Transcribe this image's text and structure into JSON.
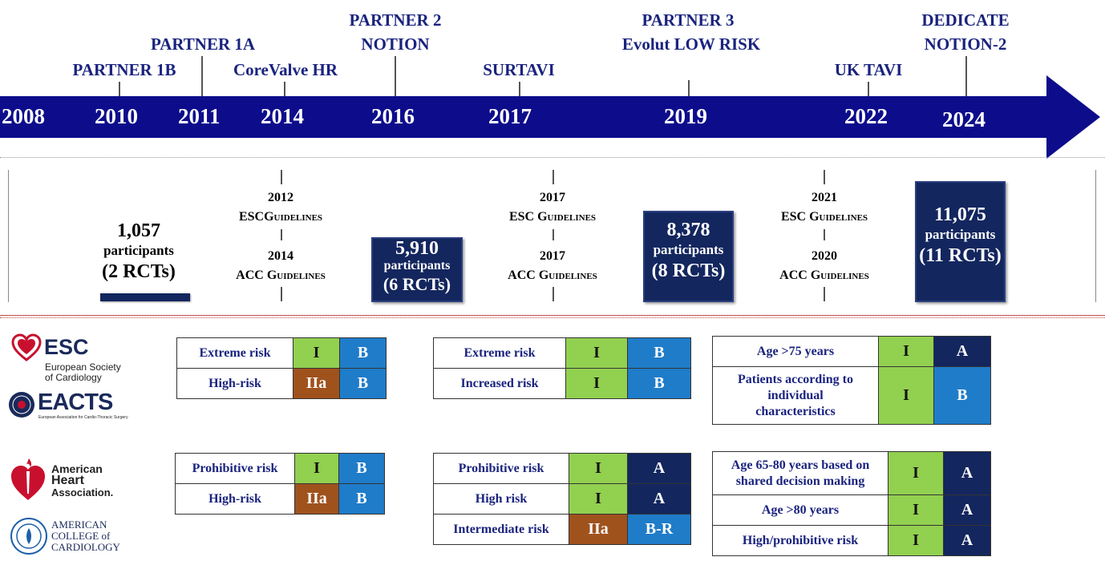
{
  "timeline": {
    "years": [
      "2008",
      "2010",
      "2011",
      "2014",
      "2016",
      "2017",
      "2019",
      "2022",
      "2024"
    ],
    "trials": {
      "partner1b": "PARTNER 1B",
      "partner1a": "PARTNER 1A",
      "corevalve": "CoreValve HR",
      "partner2": "PARTNER 2",
      "notion": "NOTION",
      "surtavi": "SURTAVI",
      "partner3": "PARTNER 3",
      "evolut": "Evolut LOW RISK",
      "uktavi": "UK TAVI",
      "dedicate": "DEDICATE",
      "notion2": "NOTION-2"
    },
    "colors": {
      "arrow": "#0d0d8c",
      "trial_text": "#1a237e"
    }
  },
  "participants": [
    {
      "number": "1,057",
      "label": "participants",
      "rcts": "(2 RCTs)"
    },
    {
      "number": "5,910",
      "label": "participants",
      "rcts": "(6 RCTs)"
    },
    {
      "number": "8,378",
      "label": "participants",
      "rcts": "(8 RCTs)"
    },
    {
      "number": "11,075",
      "label": "participants",
      "rcts": "(11 RCTs)"
    }
  ],
  "guidelines": [
    {
      "esc_year": "2012",
      "esc_label": "ESCGuidelines",
      "acc_year": "2014",
      "acc_label": "ACC Guidelines"
    },
    {
      "esc_year": "2017",
      "esc_label": "ESC Guidelines",
      "acc_year": "2017",
      "acc_label": "ACC Guidelines"
    },
    {
      "esc_year": "2021",
      "esc_label": "ESC Guidelines",
      "acc_year": "2020",
      "acc_label": "ACC Guidelines"
    }
  ],
  "logos": {
    "esc": {
      "mark": "ESC",
      "line1": "European Society",
      "line2": "of Cardiology"
    },
    "eacts": {
      "mark": "EACTS",
      "sub": "European Association for Cardio-Thoracic Surgery"
    },
    "aha": {
      "line1": "American",
      "line2": "Heart",
      "line3": "Association."
    },
    "acc": {
      "line1": "AMERICAN",
      "line2": "COLLEGE of",
      "line3": "CARDIOLOGY"
    }
  },
  "esc_tables": [
    [
      {
        "label": "Extreme risk",
        "class": "I",
        "level": "B"
      },
      {
        "label": "High-risk",
        "class": "IIa",
        "level": "B"
      }
    ],
    [
      {
        "label": "Extreme risk",
        "class": "I",
        "level": "B"
      },
      {
        "label": "Increased risk",
        "class": "I",
        "level": "B"
      }
    ],
    [
      {
        "label": "Age >75 years",
        "class": "I",
        "level": "A"
      },
      {
        "label": "Patients according to individual characteristics",
        "class": "I",
        "level": "B"
      }
    ]
  ],
  "acc_tables": [
    [
      {
        "label": "Prohibitive risk",
        "class": "I",
        "level": "B"
      },
      {
        "label": "High-risk",
        "class": "IIa",
        "level": "B"
      }
    ],
    [
      {
        "label": "Prohibitive risk",
        "class": "I",
        "level": "A"
      },
      {
        "label": "High risk",
        "class": "I",
        "level": "A"
      },
      {
        "label": "Intermediate risk",
        "class": "IIa",
        "level": "B-R"
      }
    ],
    [
      {
        "label": "Age 65-80 years based on shared decision making",
        "class": "I",
        "level": "A"
      },
      {
        "label": "Age >80 years",
        "class": "I",
        "level": "A"
      },
      {
        "label": "High/prohibitive risk",
        "class": "I",
        "level": "A"
      }
    ]
  ],
  "cell_colors": {
    "class_I": "#92d050",
    "class_IIa": "#a0521d",
    "level_A": "#13265e",
    "level_B": "#1f7cc9"
  }
}
